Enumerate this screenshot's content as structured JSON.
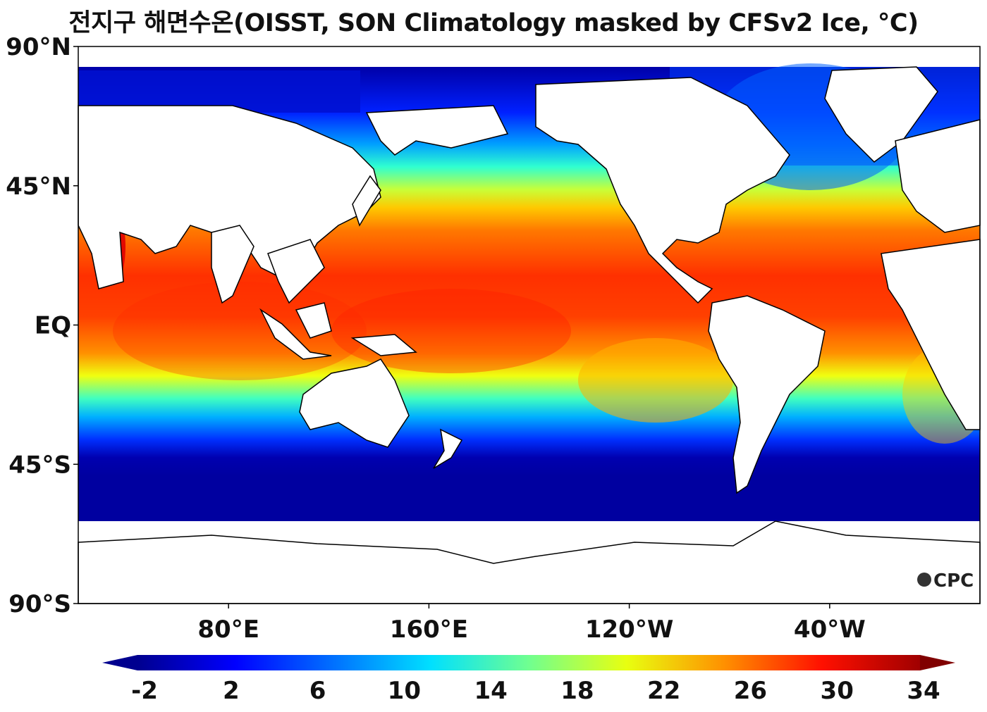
{
  "title": "전지구 해면수온(OISST, SON Climatology masked by CFSv2 Ice, °C)",
  "map": {
    "projection": "equirectangular",
    "central_longitude": 200,
    "lon_range": [
      20,
      380
    ],
    "lat_range": [
      -90,
      90
    ],
    "lat_ticks": [
      {
        "value": 90,
        "label": "90°N"
      },
      {
        "value": 45,
        "label": "45°N"
      },
      {
        "value": 0,
        "label": "EQ"
      },
      {
        "value": -45,
        "label": "45°S"
      },
      {
        "value": -90,
        "label": "90°S"
      }
    ],
    "lon_ticks": [
      {
        "value": 80,
        "label": "80°E"
      },
      {
        "value": 160,
        "label": "160°E"
      },
      {
        "value": 240,
        "label": "120°W"
      },
      {
        "value": 320,
        "label": "40°W"
      }
    ],
    "field": "Sea surface temperature, SON climatology",
    "colormap": "jet",
    "land_color": "#ffffff",
    "coastline_color": "#000000"
  },
  "colorbar": {
    "min": -2,
    "max": 34,
    "extend": "both",
    "ticks": [
      -2,
      2,
      6,
      10,
      14,
      18,
      22,
      26,
      30,
      34
    ],
    "tick_labels": [
      "-2",
      "2",
      "6",
      "10",
      "14",
      "18",
      "22",
      "26",
      "30",
      "34"
    ],
    "colors": [
      "#000080",
      "#0000ff",
      "#0080ff",
      "#00ffff",
      "#80ff80",
      "#ffff00",
      "#ff8000",
      "#ff0000",
      "#800000"
    ]
  },
  "logo": "CPC"
}
